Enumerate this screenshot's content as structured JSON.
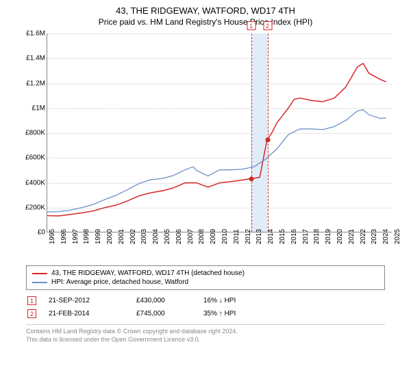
{
  "header": {
    "title": "43, THE RIDGEWAY, WATFORD, WD17 4TH",
    "subtitle": "Price paid vs. HM Land Registry's House Price Index (HPI)"
  },
  "chart": {
    "type": "line",
    "background_color": "#ffffff",
    "grid_color": "#cfcfcf",
    "axis_color": "#888888",
    "xlim": [
      1995,
      2025
    ],
    "ylim": [
      0,
      1600000
    ],
    "ytick_step": 200000,
    "ytick_labels": [
      "£0",
      "£200K",
      "£400K",
      "£600K",
      "£800K",
      "£1M",
      "£1.2M",
      "£1.4M",
      "£1.6M"
    ],
    "xtick_labels": [
      "1995",
      "1996",
      "1997",
      "1998",
      "1999",
      "2000",
      "2001",
      "2002",
      "2003",
      "2004",
      "2005",
      "2006",
      "2007",
      "2008",
      "2009",
      "2010",
      "2011",
      "2012",
      "2013",
      "2014",
      "2015",
      "2016",
      "2017",
      "2018",
      "2019",
      "2020",
      "2021",
      "2022",
      "2023",
      "2024",
      "2025"
    ],
    "event_band": {
      "start": 2012.72,
      "end": 2014.14,
      "color": "#dbe9f7"
    },
    "events": [
      {
        "id": "1",
        "x": 2012.72,
        "color": "#d62728"
      },
      {
        "id": "2",
        "x": 2014.14,
        "color": "#d62728"
      }
    ],
    "sale_markers": [
      {
        "x": 2012.72,
        "y": 430000,
        "fill": "#d62728",
        "border": "#d62728"
      },
      {
        "x": 2014.14,
        "y": 745000,
        "fill": "#d62728",
        "border": "#d62728"
      }
    ],
    "series": [
      {
        "name": "price_paid",
        "color": "#d62728",
        "line_width": 1.5,
        "points": [
          [
            1995,
            130000
          ],
          [
            1996,
            128000
          ],
          [
            1997,
            140000
          ],
          [
            1998,
            152000
          ],
          [
            1999,
            168000
          ],
          [
            2000,
            195000
          ],
          [
            2001,
            215000
          ],
          [
            2002,
            250000
          ],
          [
            2003,
            290000
          ],
          [
            2004,
            315000
          ],
          [
            2005,
            330000
          ],
          [
            2006,
            355000
          ],
          [
            2007,
            395000
          ],
          [
            2008,
            395000
          ],
          [
            2009,
            360000
          ],
          [
            2010,
            395000
          ],
          [
            2011,
            405000
          ],
          [
            2012,
            418000
          ],
          [
            2012.72,
            430000
          ],
          [
            2013,
            432000
          ],
          [
            2013.5,
            440000
          ],
          [
            2014.14,
            745000
          ],
          [
            2014.5,
            790000
          ],
          [
            2015,
            880000
          ],
          [
            2016,
            1000000
          ],
          [
            2016.5,
            1070000
          ],
          [
            2017,
            1080000
          ],
          [
            2018,
            1060000
          ],
          [
            2019,
            1050000
          ],
          [
            2020,
            1080000
          ],
          [
            2021,
            1170000
          ],
          [
            2022,
            1330000
          ],
          [
            2022.5,
            1360000
          ],
          [
            2023,
            1280000
          ],
          [
            2024,
            1230000
          ],
          [
            2024.5,
            1210000
          ]
        ]
      },
      {
        "name": "hpi",
        "color": "#6b8fc7",
        "line_width": 1.3,
        "points": [
          [
            1995,
            160000
          ],
          [
            1996,
            162000
          ],
          [
            1997,
            175000
          ],
          [
            1998,
            195000
          ],
          [
            1999,
            220000
          ],
          [
            2000,
            260000
          ],
          [
            2001,
            295000
          ],
          [
            2002,
            340000
          ],
          [
            2003,
            390000
          ],
          [
            2004,
            420000
          ],
          [
            2005,
            430000
          ],
          [
            2006,
            455000
          ],
          [
            2007,
            500000
          ],
          [
            2007.7,
            525000
          ],
          [
            2008,
            495000
          ],
          [
            2009,
            450000
          ],
          [
            2010,
            500000
          ],
          [
            2011,
            500000
          ],
          [
            2012,
            505000
          ],
          [
            2013,
            525000
          ],
          [
            2014,
            585000
          ],
          [
            2015,
            670000
          ],
          [
            2016,
            785000
          ],
          [
            2017,
            830000
          ],
          [
            2018,
            830000
          ],
          [
            2019,
            825000
          ],
          [
            2020,
            850000
          ],
          [
            2021,
            900000
          ],
          [
            2022,
            975000
          ],
          [
            2022.5,
            985000
          ],
          [
            2023,
            945000
          ],
          [
            2024,
            915000
          ],
          [
            2024.5,
            920000
          ]
        ]
      }
    ]
  },
  "legend": {
    "items": [
      {
        "color": "#d62728",
        "label": "43, THE RIDGEWAY, WATFORD, WD17 4TH (detached house)"
      },
      {
        "color": "#6b8fc7",
        "label": "HPI: Average price, detached house, Watford"
      }
    ]
  },
  "sales": [
    {
      "id": "1",
      "date": "21-SEP-2012",
      "price": "£430,000",
      "diff": "16% ↓ HPI",
      "arrow": "↓"
    },
    {
      "id": "2",
      "date": "21-FEB-2014",
      "price": "£745,000",
      "diff": "35% ↑ HPI",
      "arrow": "↑"
    }
  ],
  "footer": {
    "line1": "Contains HM Land Registry data © Crown copyright and database right 2024.",
    "line2": "This data is licensed under the Open Government Licence v3.0."
  }
}
